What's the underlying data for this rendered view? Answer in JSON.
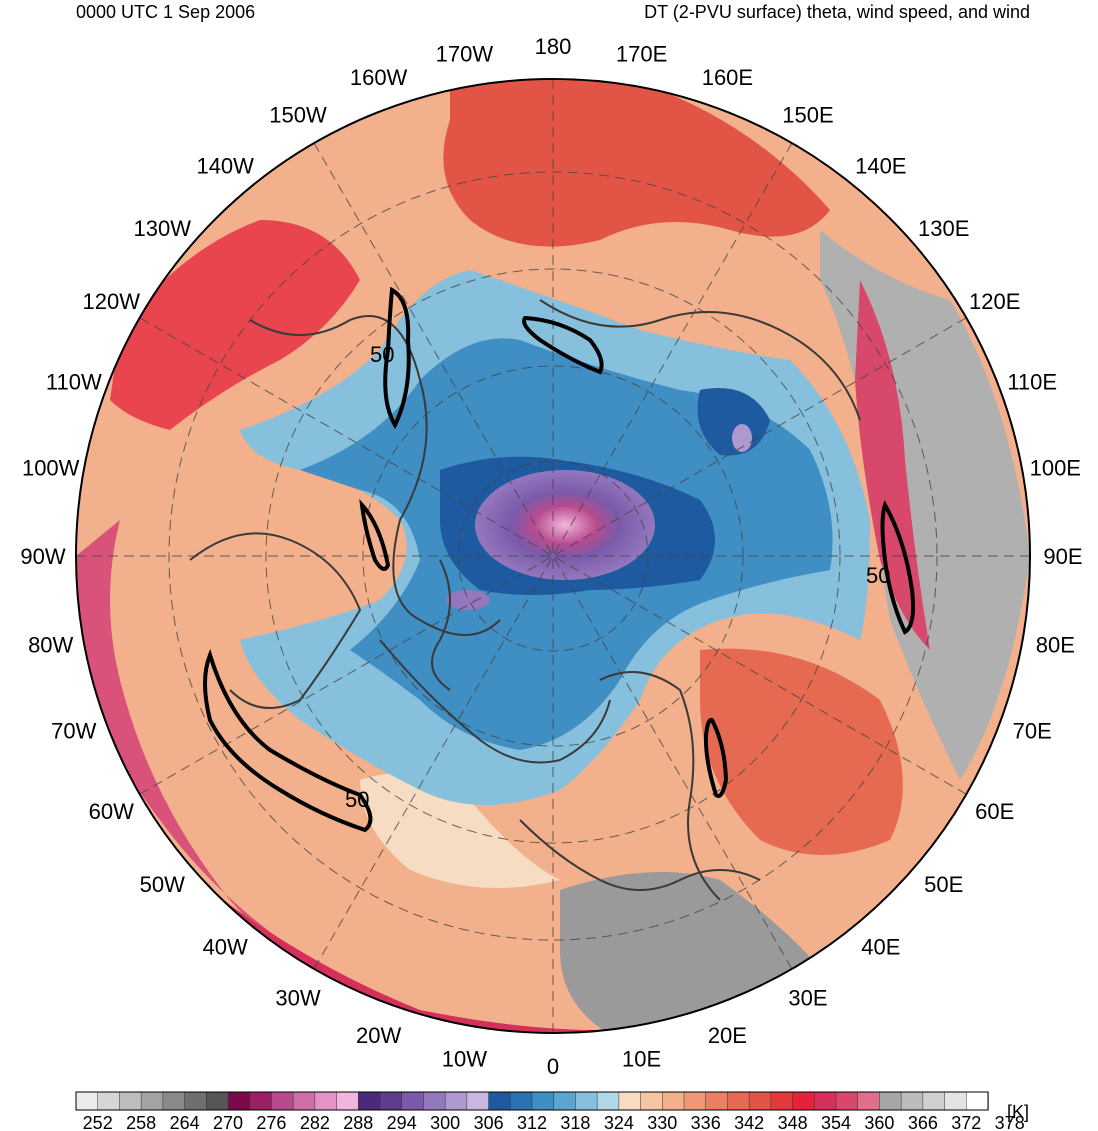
{
  "header": {
    "time_label": "0000 UTC 1 Sep 2006",
    "field_label": "DT (2-PVU surface) theta, wind speed, and wind"
  },
  "map": {
    "projection": "north-polar-stereographic",
    "longitude_labels": [
      "180",
      "170E",
      "160E",
      "150E",
      "140E",
      "130E",
      "120E",
      "110E",
      "100E",
      "90E",
      "80E",
      "70E",
      "60E",
      "50E",
      "40E",
      "30E",
      "20E",
      "10E",
      "0",
      "10W",
      "20W",
      "30W",
      "40W",
      "50W",
      "60W",
      "70W",
      "80W",
      "90W",
      "100W",
      "110W",
      "120W",
      "130W",
      "140W",
      "150W",
      "160W",
      "170W"
    ],
    "contour_labels": [
      "50",
      "50",
      "50"
    ],
    "colors": {
      "warm_fill": "#f4a582",
      "hot_fill": "#e8443a",
      "pink_fill": "#d9527a",
      "cold_fill": "#4393c3",
      "deep_cold": "#2166ac",
      "purple_core": "#7b5bb0",
      "coast": "#3a3a3a",
      "jet_contour": "#000000"
    }
  },
  "colorbar": {
    "unit": "[K]",
    "tick_labels": [
      "252",
      "258",
      "264",
      "270",
      "276",
      "282",
      "288",
      "294",
      "300",
      "306",
      "312",
      "318",
      "324",
      "330",
      "336",
      "342",
      "348",
      "354",
      "360",
      "366",
      "372",
      "378"
    ],
    "bins": [
      "#ececec",
      "#d6d6d6",
      "#bdbdbd",
      "#a3a3a3",
      "#8a8a8a",
      "#6f6f6f",
      "#565656",
      "#7a0a4a",
      "#9c1f66",
      "#b64b8e",
      "#cf6fa8",
      "#e394c4",
      "#f2b6dc",
      "#4a2a7a",
      "#5e3c8e",
      "#7a5aaa",
      "#9478be",
      "#ae98d0",
      "#c8b8e0",
      "#1d5aa0",
      "#2a72b4",
      "#3f8ec4",
      "#5ba6d0",
      "#86c0dc",
      "#b0d8e6",
      "#f6dcc2",
      "#f6c6a4",
      "#f2b08c",
      "#ee9876",
      "#ea8062",
      "#e66a52",
      "#e25446",
      "#e23a3a",
      "#e6223a",
      "#d4305a",
      "#d8486a",
      "#e06e8c",
      "#a6a6a6",
      "#bcbcbc",
      "#d0d0d0",
      "#e4e4e4",
      "#ffffff"
    ]
  }
}
